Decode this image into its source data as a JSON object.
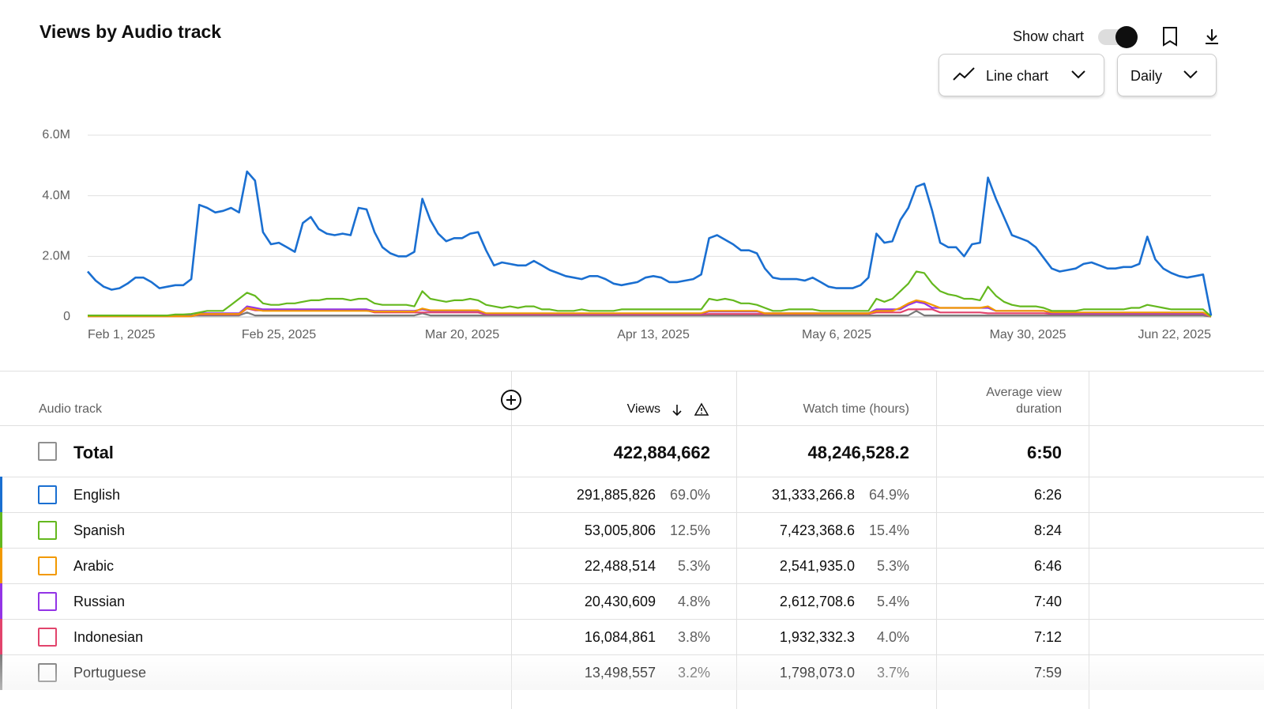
{
  "header": {
    "title": "Views by Audio track"
  },
  "controls": {
    "show_chart": "Show chart",
    "chart_type": "Line chart",
    "interval": "Daily"
  },
  "chart_data": {
    "type": "line",
    "ylim": [
      0,
      6000000
    ],
    "yticks": [
      0,
      {
        "value": 2000000,
        "label": "2.0M"
      },
      {
        "value": 4000000,
        "label": "4.0M"
      },
      {
        "value": 6000000,
        "label": "6.0M"
      }
    ],
    "grid": true,
    "categories": [
      "Feb 1, 2025",
      null,
      null,
      null,
      null,
      null,
      null,
      null,
      null,
      null,
      null,
      null,
      null,
      null,
      null,
      null,
      null,
      null,
      null,
      null,
      null,
      null,
      null,
      null,
      "Feb 25, 2025",
      null,
      null,
      null,
      null,
      null,
      null,
      null,
      null,
      null,
      null,
      null,
      null,
      null,
      null,
      null,
      null,
      null,
      null,
      null,
      null,
      null,
      null,
      "Mar 20, 2025",
      null,
      null,
      null,
      null,
      null,
      null,
      null,
      null,
      null,
      null,
      null,
      null,
      null,
      null,
      null,
      null,
      null,
      null,
      null,
      null,
      null,
      null,
      null,
      "Apr 13, 2025",
      null,
      null,
      null,
      null,
      null,
      null,
      null,
      null,
      null,
      null,
      null,
      null,
      null,
      null,
      null,
      null,
      null,
      null,
      null,
      null,
      null,
      null,
      "May 6, 2025",
      null,
      null,
      null,
      null,
      null,
      null,
      null,
      null,
      null,
      null,
      null,
      null,
      null,
      null,
      null,
      null,
      null,
      null,
      null,
      null,
      null,
      null,
      null,
      "May 30, 2025",
      null,
      null,
      null,
      null,
      null,
      null,
      null,
      null,
      null,
      null,
      null,
      null,
      null,
      null,
      null,
      null,
      null,
      null,
      null,
      null,
      null,
      null,
      "Jun 22, 2025"
    ],
    "series": [
      {
        "name": "English",
        "color": "#1a6fd1",
        "values": [
          1500000,
          1200000,
          1000000,
          900000,
          950000,
          1100000,
          1300000,
          1300000,
          1150000,
          950000,
          1000000,
          1050000,
          1050000,
          1250000,
          3700000,
          3600000,
          3450000,
          3500000,
          3600000,
          3450000,
          4800000,
          4500000,
          2800000,
          2400000,
          2450000,
          2300000,
          2150000,
          3100000,
          3300000,
          2900000,
          2750000,
          2700000,
          2750000,
          2700000,
          3600000,
          3550000,
          2800000,
          2300000,
          2100000,
          2000000,
          2000000,
          2150000,
          3900000,
          3200000,
          2750000,
          2500000,
          2600000,
          2600000,
          2750000,
          2800000,
          2200000,
          1700000,
          1800000,
          1750000,
          1700000,
          1700000,
          1850000,
          1700000,
          1550000,
          1450000,
          1350000,
          1300000,
          1250000,
          1350000,
          1350000,
          1250000,
          1100000,
          1050000,
          1100000,
          1150000,
          1300000,
          1350000,
          1300000,
          1150000,
          1150000,
          1200000,
          1250000,
          1400000,
          2600000,
          2700000,
          2550000,
          2400000,
          2200000,
          2200000,
          2100000,
          1600000,
          1300000,
          1250000,
          1250000,
          1250000,
          1200000,
          1300000,
          1150000,
          1000000,
          950000,
          950000,
          950000,
          1050000,
          1300000,
          2750000,
          2450000,
          2500000,
          3200000,
          3600000,
          4300000,
          4400000,
          3500000,
          2450000,
          2300000,
          2300000,
          2000000,
          2400000,
          2450000,
          4600000,
          3900000,
          3300000,
          2700000,
          2600000,
          2500000,
          2300000,
          1950000,
          1600000,
          1500000,
          1550000,
          1600000,
          1750000,
          1800000,
          1700000,
          1600000,
          1600000,
          1650000,
          1650000,
          1750000,
          2650000,
          1900000,
          1600000,
          1450000,
          1350000,
          1300000,
          1350000,
          1400000,
          50000
        ]
      },
      {
        "name": "Spanish",
        "color": "#64b81e",
        "values": [
          50000,
          50000,
          50000,
          50000,
          50000,
          50000,
          50000,
          50000,
          50000,
          50000,
          50000,
          80000,
          80000,
          100000,
          150000,
          200000,
          200000,
          200000,
          400000,
          600000,
          800000,
          700000,
          450000,
          400000,
          400000,
          450000,
          450000,
          500000,
          550000,
          550000,
          600000,
          600000,
          600000,
          550000,
          600000,
          600000,
          450000,
          400000,
          400000,
          400000,
          400000,
          350000,
          850000,
          600000,
          550000,
          500000,
          550000,
          550000,
          600000,
          550000,
          400000,
          350000,
          300000,
          350000,
          300000,
          350000,
          350000,
          250000,
          250000,
          200000,
          200000,
          200000,
          250000,
          200000,
          200000,
          200000,
          200000,
          250000,
          250000,
          250000,
          250000,
          250000,
          250000,
          250000,
          250000,
          250000,
          250000,
          250000,
          600000,
          550000,
          600000,
          550000,
          450000,
          450000,
          400000,
          300000,
          200000,
          200000,
          250000,
          250000,
          250000,
          250000,
          200000,
          200000,
          200000,
          200000,
          200000,
          200000,
          200000,
          600000,
          500000,
          600000,
          850000,
          1100000,
          1500000,
          1450000,
          1100000,
          850000,
          750000,
          700000,
          600000,
          600000,
          550000,
          1000000,
          700000,
          500000,
          400000,
          350000,
          350000,
          350000,
          300000,
          200000,
          200000,
          200000,
          200000,
          250000,
          250000,
          250000,
          250000,
          250000,
          250000,
          300000,
          300000,
          400000,
          350000,
          300000,
          250000,
          250000,
          250000,
          250000,
          250000,
          20000
        ]
      },
      {
        "name": "Arabic",
        "color": "#f29900",
        "values": [
          20000,
          20000,
          20000,
          20000,
          20000,
          20000,
          20000,
          20000,
          20000,
          20000,
          20000,
          20000,
          20000,
          20000,
          100000,
          100000,
          100000,
          100000,
          100000,
          100000,
          300000,
          250000,
          200000,
          200000,
          200000,
          200000,
          200000,
          200000,
          200000,
          200000,
          200000,
          200000,
          200000,
          200000,
          200000,
          200000,
          180000,
          180000,
          180000,
          180000,
          180000,
          180000,
          280000,
          220000,
          220000,
          220000,
          220000,
          220000,
          220000,
          220000,
          120000,
          120000,
          120000,
          120000,
          120000,
          120000,
          120000,
          120000,
          120000,
          120000,
          120000,
          120000,
          120000,
          120000,
          120000,
          120000,
          120000,
          120000,
          120000,
          120000,
          120000,
          120000,
          120000,
          120000,
          120000,
          120000,
          120000,
          120000,
          200000,
          200000,
          200000,
          200000,
          200000,
          200000,
          200000,
          120000,
          120000,
          120000,
          120000,
          120000,
          120000,
          120000,
          120000,
          120000,
          120000,
          120000,
          120000,
          120000,
          120000,
          200000,
          200000,
          200000,
          300000,
          450000,
          550000,
          500000,
          400000,
          300000,
          300000,
          300000,
          300000,
          300000,
          300000,
          350000,
          200000,
          200000,
          200000,
          200000,
          200000,
          200000,
          200000,
          150000,
          150000,
          150000,
          150000,
          150000,
          150000,
          150000,
          150000,
          150000,
          150000,
          150000,
          150000,
          150000,
          150000,
          150000,
          150000,
          150000,
          150000,
          150000,
          150000,
          10000
        ]
      },
      {
        "name": "Russian",
        "color": "#9334e6",
        "values": [
          30000,
          30000,
          30000,
          30000,
          30000,
          30000,
          30000,
          30000,
          30000,
          30000,
          30000,
          30000,
          30000,
          30000,
          120000,
          120000,
          120000,
          120000,
          120000,
          120000,
          350000,
          300000,
          250000,
          250000,
          250000,
          250000,
          250000,
          250000,
          250000,
          250000,
          250000,
          250000,
          250000,
          250000,
          250000,
          250000,
          200000,
          200000,
          200000,
          200000,
          200000,
          200000,
          250000,
          200000,
          200000,
          200000,
          200000,
          200000,
          200000,
          200000,
          100000,
          100000,
          100000,
          100000,
          100000,
          100000,
          100000,
          100000,
          100000,
          100000,
          100000,
          100000,
          100000,
          100000,
          100000,
          100000,
          100000,
          100000,
          100000,
          100000,
          100000,
          100000,
          100000,
          100000,
          100000,
          100000,
          100000,
          100000,
          180000,
          180000,
          180000,
          180000,
          180000,
          180000,
          180000,
          120000,
          120000,
          120000,
          120000,
          120000,
          120000,
          120000,
          120000,
          120000,
          120000,
          120000,
          120000,
          120000,
          120000,
          250000,
          250000,
          250000,
          250000,
          400000,
          500000,
          450000,
          300000,
          300000,
          300000,
          300000,
          300000,
          300000,
          300000,
          300000,
          200000,
          200000,
          200000,
          200000,
          200000,
          200000,
          200000,
          120000,
          120000,
          120000,
          120000,
          120000,
          120000,
          120000,
          120000,
          120000,
          120000,
          120000,
          120000,
          120000,
          120000,
          120000,
          120000,
          120000,
          120000,
          120000,
          120000,
          10000
        ]
      },
      {
        "name": "Indonesian",
        "color": "#e2446c",
        "values": [
          20000,
          20000,
          20000,
          20000,
          20000,
          20000,
          20000,
          20000,
          20000,
          20000,
          20000,
          20000,
          20000,
          20000,
          80000,
          80000,
          80000,
          80000,
          80000,
          80000,
          280000,
          220000,
          220000,
          220000,
          220000,
          220000,
          220000,
          220000,
          220000,
          220000,
          220000,
          220000,
          220000,
          220000,
          220000,
          220000,
          150000,
          150000,
          150000,
          150000,
          150000,
          150000,
          150000,
          150000,
          150000,
          150000,
          150000,
          150000,
          150000,
          150000,
          80000,
          80000,
          80000,
          80000,
          80000,
          80000,
          80000,
          80000,
          80000,
          80000,
          80000,
          80000,
          80000,
          80000,
          80000,
          80000,
          80000,
          80000,
          80000,
          80000,
          80000,
          80000,
          80000,
          80000,
          80000,
          80000,
          80000,
          80000,
          100000,
          100000,
          100000,
          100000,
          100000,
          100000,
          100000,
          100000,
          100000,
          100000,
          100000,
          100000,
          100000,
          100000,
          100000,
          100000,
          100000,
          100000,
          100000,
          100000,
          100000,
          150000,
          150000,
          150000,
          150000,
          250000,
          250000,
          250000,
          250000,
          150000,
          150000,
          150000,
          150000,
          150000,
          150000,
          120000,
          120000,
          120000,
          120000,
          120000,
          120000,
          120000,
          120000,
          100000,
          100000,
          100000,
          100000,
          100000,
          100000,
          100000,
          100000,
          100000,
          100000,
          100000,
          100000,
          100000,
          100000,
          100000,
          100000,
          100000,
          100000,
          100000,
          100000,
          10000
        ]
      },
      {
        "name": "Portuguese",
        "color": "#7a7a7a",
        "values": [
          50000,
          50000,
          50000,
          50000,
          50000,
          50000,
          50000,
          50000,
          50000,
          50000,
          50000,
          50000,
          50000,
          50000,
          50000,
          50000,
          50000,
          50000,
          50000,
          50000,
          150000,
          50000,
          50000,
          50000,
          50000,
          50000,
          50000,
          50000,
          50000,
          50000,
          50000,
          50000,
          50000,
          50000,
          50000,
          50000,
          50000,
          50000,
          50000,
          50000,
          50000,
          50000,
          120000,
          50000,
          50000,
          50000,
          50000,
          50000,
          50000,
          50000,
          50000,
          50000,
          50000,
          50000,
          50000,
          50000,
          50000,
          50000,
          50000,
          50000,
          50000,
          50000,
          50000,
          50000,
          50000,
          50000,
          50000,
          50000,
          50000,
          50000,
          50000,
          50000,
          50000,
          50000,
          50000,
          50000,
          50000,
          50000,
          50000,
          50000,
          50000,
          50000,
          50000,
          50000,
          50000,
          50000,
          50000,
          50000,
          50000,
          50000,
          50000,
          50000,
          50000,
          50000,
          50000,
          50000,
          50000,
          50000,
          50000,
          50000,
          50000,
          50000,
          50000,
          50000,
          200000,
          50000,
          50000,
          50000,
          50000,
          50000,
          50000,
          50000,
          50000,
          50000,
          50000,
          50000,
          50000,
          50000,
          50000,
          50000,
          50000,
          50000,
          50000,
          50000,
          50000,
          50000,
          50000,
          50000,
          50000,
          50000,
          50000,
          50000,
          50000,
          50000,
          50000,
          50000,
          50000,
          50000,
          50000,
          50000,
          50000,
          10000
        ]
      }
    ]
  },
  "table": {
    "columns": [
      "Audio track",
      "Views",
      "Watch time (hours)",
      "Average view duration"
    ],
    "total": {
      "label": "Total",
      "cells": [
        "422,884,662",
        "48,246,528.2",
        "6:50"
      ]
    },
    "rows": [
      [
        "291,885,826",
        "69.0%",
        "31,333,266.8",
        "64.9%",
        "6:26"
      ],
      [
        "53,005,806",
        "12.5%",
        "7,423,368.6",
        "15.4%",
        "8:24"
      ],
      [
        "22,488,514",
        "5.3%",
        "2,541,935.0",
        "5.3%",
        "6:46"
      ],
      [
        "20,430,609",
        "4.8%",
        "2,612,708.6",
        "5.4%",
        "7:40"
      ],
      [
        "16,084,861",
        "3.8%",
        "1,932,332.3",
        "4.0%",
        "7:12"
      ],
      [
        "13,498,557",
        "3.2%",
        "1,798,073.0",
        "3.7%",
        "7:59"
      ]
    ]
  }
}
